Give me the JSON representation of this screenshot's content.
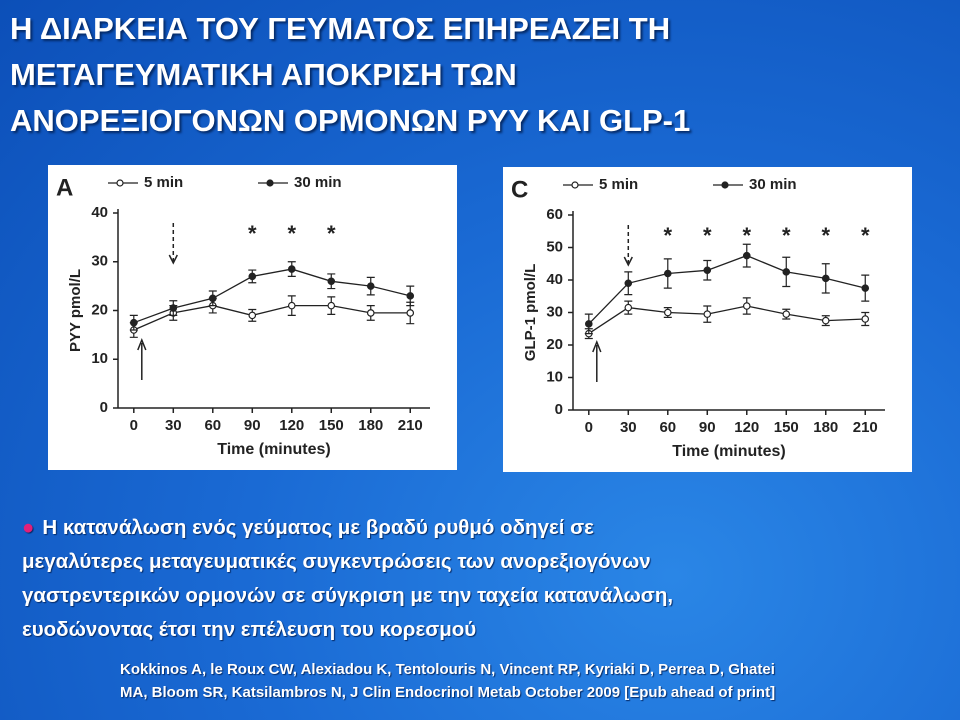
{
  "title_lines": [
    "Η ΔΙΑΡΚΕΙΑ ΤΟΥ ΓΕΥΜΑΤΟΣ ΕΠΗΡΕΑΖΕΙ ΤΗ",
    "ΜΕΤΑΓΕΥΜΑΤΙΚΗ ΑΠΟΚΡΙΣΗ ΤΩΝ",
    "ΑΝΟΡΕΞΙΟΓΟΝΩΝ ΟΡΜΟΝΩΝ PYY KAI GLP-1"
  ],
  "chart_data": [
    {
      "type": "line",
      "panel": "A",
      "xlabel": "Time (minutes)",
      "ylabel": "PYY pmol/L",
      "x": [
        0,
        30,
        60,
        90,
        120,
        150,
        180,
        210
      ],
      "xlim": [
        -12,
        225
      ],
      "xticks": [
        0,
        30,
        60,
        90,
        120,
        150,
        180,
        210
      ],
      "ylim": [
        0,
        40
      ],
      "yticks": [
        0,
        10,
        20,
        30,
        40
      ],
      "legend": "top",
      "series": [
        {
          "name": "5 min",
          "color": "#222222",
          "marker": "open",
          "values": [
            16,
            19.5,
            21,
            19,
            21,
            21,
            19.5,
            19.5
          ],
          "errors": [
            1.5,
            1.5,
            1.5,
            1.2,
            2,
            1.8,
            1.5,
            2.2
          ]
        },
        {
          "name": "30 min",
          "color": "#222222",
          "marker": "filled",
          "values": [
            17.5,
            20.5,
            22.5,
            27,
            28.5,
            26,
            25,
            23
          ],
          "errors": [
            1.5,
            1.5,
            1.5,
            1.3,
            1.5,
            1.5,
            1.8,
            2
          ]
        }
      ],
      "annotations": [
        {
          "text": "*",
          "x": 90
        },
        {
          "text": "*",
          "x": 120
        },
        {
          "text": "*",
          "x": 150
        }
      ]
    },
    {
      "type": "line",
      "panel": "C",
      "xlabel": "Time (minutes)",
      "ylabel": "GLP-1 pmol/L",
      "x": [
        0,
        30,
        60,
        90,
        120,
        150,
        180,
        210
      ],
      "xlim": [
        -12,
        225
      ],
      "xticks": [
        0,
        30,
        60,
        90,
        120,
        150,
        180,
        210
      ],
      "ylim": [
        0,
        60
      ],
      "yticks": [
        0,
        10,
        20,
        30,
        40,
        50,
        60
      ],
      "legend": "top",
      "series": [
        {
          "name": "5 min",
          "color": "#222222",
          "marker": "open",
          "values": [
            23.5,
            31.5,
            30,
            29.5,
            32,
            29.5,
            27.5,
            28
          ],
          "errors": [
            1.5,
            2,
            1.5,
            2.5,
            2.5,
            1.5,
            1.5,
            2
          ]
        },
        {
          "name": "30 min",
          "color": "#222222",
          "marker": "filled",
          "values": [
            26.5,
            39,
            42,
            43,
            47.5,
            42.5,
            40.5,
            37.5
          ],
          "errors": [
            3,
            3.5,
            4.5,
            3,
            3.5,
            4.5,
            4.5,
            4
          ]
        }
      ],
      "annotations": [
        {
          "text": "*",
          "x": 60
        },
        {
          "text": "*",
          "x": 90
        },
        {
          "text": "*",
          "x": 120
        },
        {
          "text": "*",
          "x": 150
        },
        {
          "text": "*",
          "x": 180
        },
        {
          "text": "*",
          "x": 210
        }
      ]
    }
  ],
  "bullet_lines": [
    "Η κατανάλωση ενός γεύματος με βραδύ ρυθμό οδηγεί σε",
    "μεγαλύτερες μεταγευματικές συγκεντρώσεις των ανορεξιογόνων",
    "γαστρεντερικών ορμονών σε σύγκριση με την ταχεία κατανάλωση,",
    "ευοδώνοντας έτσι την επέλευση του κορεσμού"
  ],
  "citation_lines": [
    "Kokkinos A, le Roux CW, Alexiadou K, Tentolouris N, Vincent RP, Kyriaki D, Perrea D, Ghatei",
    "MA, Bloom SR, Katsilambros N, J Clin Endocrinol Metab October 2009 [Epub ahead of print]"
  ]
}
